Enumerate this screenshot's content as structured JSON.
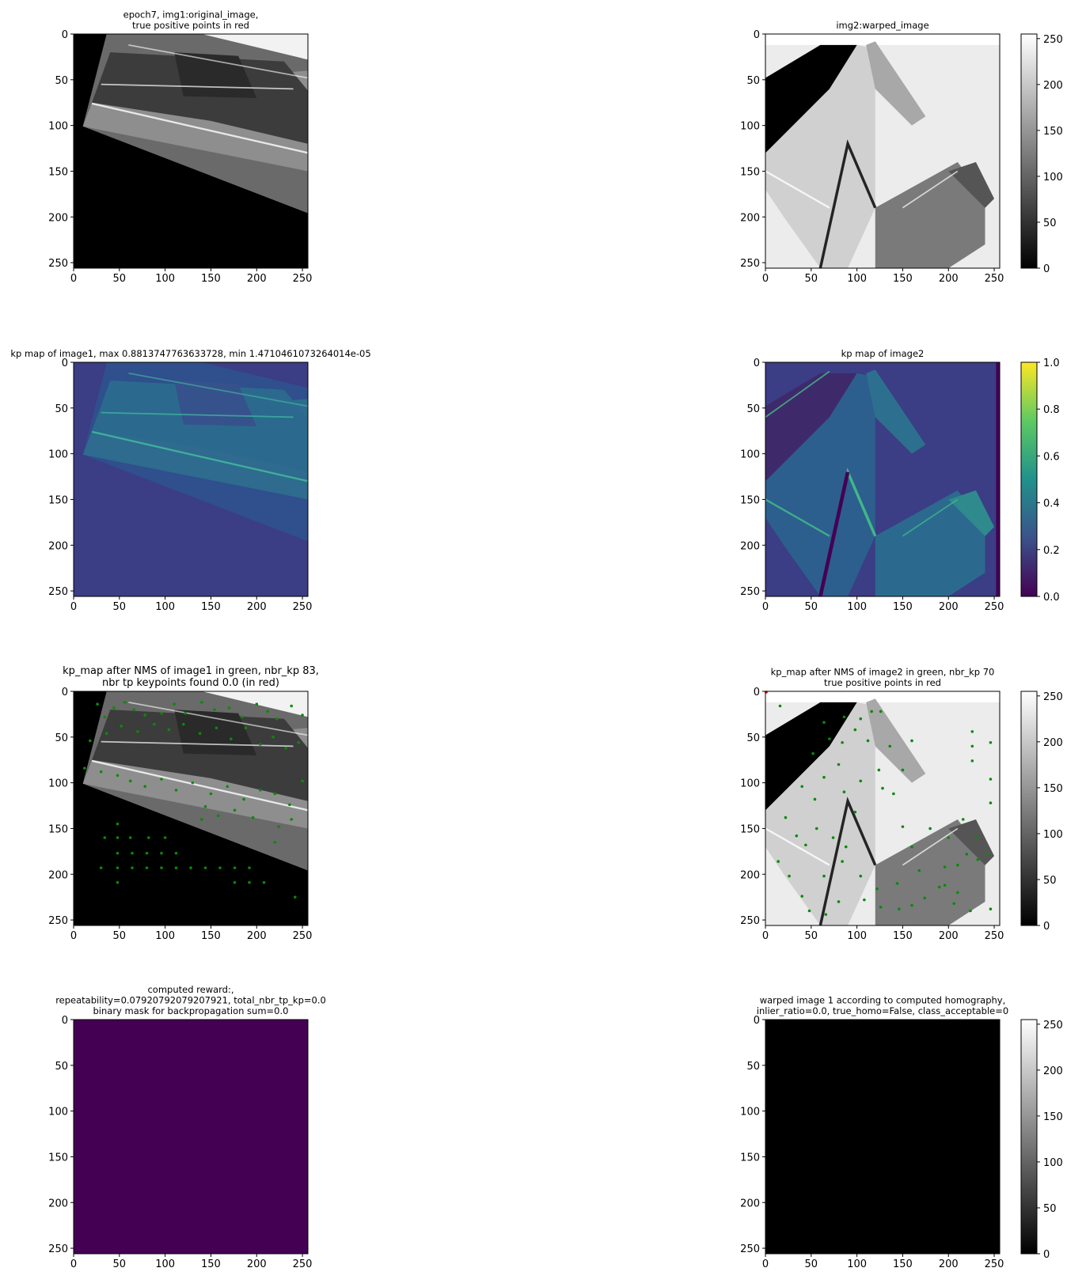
{
  "figure": {
    "panels": [
      {
        "id": "p1",
        "title_lines": [
          "epoch7, img1:original_image,",
          "true positive points in red"
        ],
        "image_kind": "gray_scene_a",
        "colorbar": null
      },
      {
        "id": "p2",
        "title_lines": [
          "img2:warped_image"
        ],
        "image_kind": "gray_scene_b",
        "colorbar": {
          "cmap": "gray",
          "ticks": [
            "0",
            "50",
            "100",
            "150",
            "200",
            "250"
          ],
          "range": [
            0,
            255
          ]
        }
      },
      {
        "id": "p3",
        "title_lines": [
          "kp map of image1, max 0.8813747763633728, min 1.4710461073264014e-05"
        ],
        "image_kind": "viridis_scene_a",
        "colorbar": null
      },
      {
        "id": "p4",
        "title_lines": [
          "kp map of image2"
        ],
        "image_kind": "viridis_scene_b",
        "colorbar": {
          "cmap": "viridis",
          "ticks": [
            "0.0",
            "0.2",
            "0.4",
            "0.6",
            "0.8",
            "1.0"
          ],
          "range": [
            0,
            1
          ]
        }
      },
      {
        "id": "p5",
        "title_lines": [
          "kp_map after NMS of image1 in green, nbr_kp 83,",
          "nbr tp keypoints found 0.0 (in red)"
        ],
        "title_size": "large",
        "image_kind": "gray_scene_a",
        "colorbar": null
      },
      {
        "id": "p6",
        "title_lines": [
          "kp_map after NMS of image2 in green, nbr_kp 70",
          "true positive points in red"
        ],
        "image_kind": "gray_scene_b",
        "colorbar": {
          "cmap": "gray",
          "ticks": [
            "0",
            "50",
            "100",
            "150",
            "200",
            "250"
          ],
          "range": [
            0,
            255
          ]
        }
      },
      {
        "id": "p7",
        "title_lines": [
          "computed reward:,",
          "repeatability=0.07920792079207921, total_nbr_tp_kp=0.0",
          "binary mask for backpropagation sum=0.0"
        ],
        "image_kind": "solid",
        "fill": "#440154",
        "colorbar": null
      },
      {
        "id": "p8",
        "title_lines": [
          "warped image 1 according to computed homography,",
          "inlier_ratio=0.0, true_homo=False, class_acceptable=0"
        ],
        "image_kind": "solid",
        "fill": "#000000",
        "colorbar": {
          "cmap": "gray",
          "ticks": [
            "0",
            "50",
            "100",
            "150",
            "200",
            "250"
          ],
          "range": [
            0,
            255
          ]
        }
      }
    ],
    "axis_ticks": [
      "0",
      "50",
      "100",
      "150",
      "200",
      "250"
    ]
  },
  "chart_data": {
    "type": "heatmap",
    "panels": [
      {
        "title": "epoch7, img1:original_image, true positive points in red",
        "xlim": [
          0,
          256
        ],
        "ylim": [
          256,
          0
        ]
      },
      {
        "title": "img2:warped_image",
        "xlim": [
          0,
          256
        ],
        "ylim": [
          256,
          0
        ],
        "colorbar_range": [
          0,
          255
        ]
      },
      {
        "title": "kp map of image1, max 0.8813747763633728, min 1.4710461073264014e-05",
        "xlim": [
          0,
          256
        ],
        "ylim": [
          256,
          0
        ]
      },
      {
        "title": "kp map of image2",
        "xlim": [
          0,
          256
        ],
        "ylim": [
          256,
          0
        ],
        "colorbar_range": [
          0,
          1
        ]
      },
      {
        "title": "kp_map after NMS of image1 in green, nbr_kp 83, nbr tp keypoints found 0.0 (in red)",
        "xlim": [
          0,
          256
        ],
        "ylim": [
          256,
          0
        ],
        "keypoints_green": [
          [
            26,
            14
          ],
          [
            34,
            28
          ],
          [
            44,
            18
          ],
          [
            56,
            12
          ],
          [
            66,
            20
          ],
          [
            78,
            26
          ],
          [
            96,
            24
          ],
          [
            110,
            14
          ],
          [
            122,
            24
          ],
          [
            140,
            12
          ],
          [
            154,
            20
          ],
          [
            170,
            18
          ],
          [
            184,
            28
          ],
          [
            200,
            14
          ],
          [
            212,
            22
          ],
          [
            222,
            30
          ],
          [
            238,
            16
          ],
          [
            250,
            26
          ],
          [
            18,
            54
          ],
          [
            36,
            46
          ],
          [
            52,
            38
          ],
          [
            70,
            44
          ],
          [
            88,
            36
          ],
          [
            104,
            42
          ],
          [
            120,
            36
          ],
          [
            138,
            46
          ],
          [
            156,
            40
          ],
          [
            172,
            52
          ],
          [
            188,
            40
          ],
          [
            204,
            58
          ],
          [
            218,
            50
          ],
          [
            232,
            62
          ],
          [
            246,
            56
          ],
          [
            12,
            84
          ],
          [
            30,
            88
          ],
          [
            48,
            92
          ],
          [
            62,
            98
          ],
          [
            78,
            104
          ],
          [
            96,
            96
          ],
          [
            112,
            108
          ],
          [
            130,
            100
          ],
          [
            150,
            112
          ],
          [
            168,
            104
          ],
          [
            186,
            118
          ],
          [
            204,
            108
          ],
          [
            220,
            112
          ],
          [
            236,
            124
          ],
          [
            250,
            98
          ],
          [
            140,
            140
          ],
          [
            158,
            136
          ],
          [
            176,
            130
          ],
          [
            196,
            138
          ],
          [
            224,
            148
          ],
          [
            238,
            140
          ],
          [
            48,
            145
          ],
          [
            34,
            160
          ],
          [
            48,
            160
          ],
          [
            62,
            160
          ],
          [
            82,
            160
          ],
          [
            100,
            160
          ],
          [
            48,
            177
          ],
          [
            64,
            177
          ],
          [
            80,
            177
          ],
          [
            96,
            177
          ],
          [
            112,
            177
          ],
          [
            30,
            193
          ],
          [
            48,
            193
          ],
          [
            64,
            193
          ],
          [
            80,
            193
          ],
          [
            96,
            193
          ],
          [
            112,
            193
          ],
          [
            128,
            193
          ],
          [
            144,
            193
          ],
          [
            160,
            193
          ],
          [
            176,
            193
          ],
          [
            192,
            193
          ],
          [
            48,
            209
          ],
          [
            176,
            209
          ],
          [
            192,
            209
          ],
          [
            208,
            209
          ],
          [
            242,
            225
          ],
          [
            220,
            165
          ],
          [
            144,
            126
          ]
        ],
        "keypoints_red": []
      },
      {
        "title": "kp_map after NMS of image2 in green, nbr_kp 70, true positive points in red",
        "xlim": [
          0,
          256
        ],
        "ylim": [
          256,
          0
        ],
        "colorbar_range": [
          0,
          255
        ],
        "keypoints_green": [
          [
            16,
            16
          ],
          [
            64,
            34
          ],
          [
            86,
            28
          ],
          [
            104,
            30
          ],
          [
            116,
            22
          ],
          [
            126,
            22
          ],
          [
            70,
            52
          ],
          [
            84,
            56
          ],
          [
            98,
            42
          ],
          [
            112,
            54
          ],
          [
            136,
            60
          ],
          [
            150,
            86
          ],
          [
            160,
            54
          ],
          [
            226,
            44
          ],
          [
            226,
            60
          ],
          [
            226,
            76
          ],
          [
            246,
            56
          ],
          [
            246,
            96
          ],
          [
            246,
            122
          ],
          [
            52,
            68
          ],
          [
            64,
            94
          ],
          [
            80,
            80
          ],
          [
            104,
            98
          ],
          [
            124,
            86
          ],
          [
            40,
            104
          ],
          [
            54,
            118
          ],
          [
            86,
            110
          ],
          [
            98,
            132
          ],
          [
            128,
            106
          ],
          [
            140,
            112
          ],
          [
            150,
            148
          ],
          [
            22,
            138
          ],
          [
            34,
            158
          ],
          [
            14,
            186
          ],
          [
            44,
            168
          ],
          [
            56,
            150
          ],
          [
            74,
            160
          ],
          [
            88,
            170
          ],
          [
            64,
            202
          ],
          [
            84,
            186
          ],
          [
            104,
            202
          ],
          [
            122,
            216
          ],
          [
            144,
            210
          ],
          [
            168,
            196
          ],
          [
            196,
            192
          ],
          [
            210,
            190
          ],
          [
            196,
            212
          ],
          [
            210,
            220
          ],
          [
            220,
            178
          ],
          [
            232,
            184
          ],
          [
            242,
            178
          ],
          [
            216,
            140
          ],
          [
            230,
            160
          ],
          [
            146,
            238
          ],
          [
            160,
            234
          ],
          [
            174,
            226
          ],
          [
            190,
            214
          ],
          [
            206,
            232
          ],
          [
            224,
            240
          ],
          [
            246,
            238
          ],
          [
            26,
            202
          ],
          [
            40,
            224
          ],
          [
            48,
            240
          ],
          [
            66,
            244
          ],
          [
            80,
            230
          ],
          [
            108,
            228
          ],
          [
            126,
            236
          ],
          [
            180,
            150
          ],
          [
            200,
            160
          ],
          [
            160,
            170
          ]
        ],
        "keypoints_red": [
          [
            0,
            0
          ]
        ]
      },
      {
        "title": "computed reward:, repeatability=0.07920792079207921, total_nbr_tp_kp=0.0, binary mask for backpropagation sum=0.0",
        "xlim": [
          0,
          256
        ],
        "ylim": [
          256,
          0
        ],
        "uniform_value": 0
      },
      {
        "title": "warped image 1 according to computed homography, inlier_ratio=0.0, true_homo=False, class_acceptable=0",
        "xlim": [
          0,
          256
        ],
        "ylim": [
          256,
          0
        ],
        "uniform_value": 0,
        "colorbar_range": [
          0,
          255
        ]
      }
    ]
  }
}
